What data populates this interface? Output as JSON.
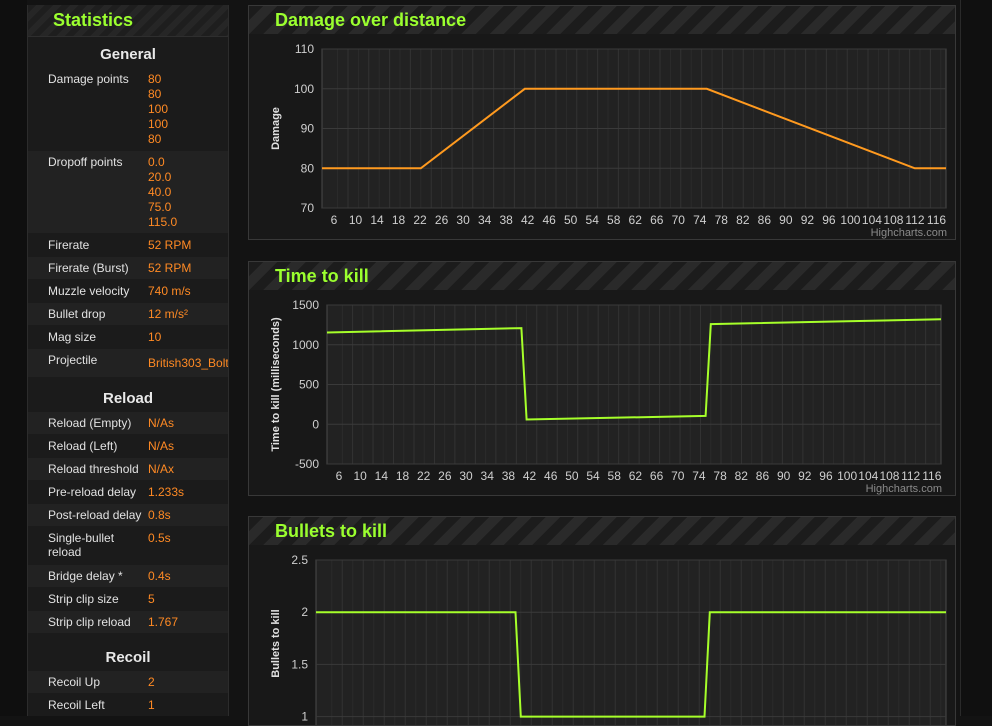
{
  "stats": {
    "title": "Statistics",
    "general_title": "General",
    "general": [
      {
        "label": "Damage points",
        "values": [
          "80",
          "80",
          "100",
          "100",
          "80"
        ]
      },
      {
        "label": "Dropoff points",
        "values": [
          "0.0",
          "20.0",
          "40.0",
          "75.0",
          "115.0"
        ]
      },
      {
        "label": "Firerate",
        "values": [
          "52 RPM"
        ]
      },
      {
        "label": "Firerate (Burst)",
        "values": [
          "52 RPM"
        ]
      },
      {
        "label": "Muzzle velocity",
        "values": [
          "740 m/s"
        ]
      },
      {
        "label": "Bullet drop",
        "values": [
          "12 m/s²"
        ]
      },
      {
        "label": "Mag size",
        "values": [
          "10"
        ]
      },
      {
        "label": "Projectile",
        "values": [
          "British303_Bolt"
        ]
      }
    ],
    "reload_title": "Reload",
    "reload": [
      {
        "label": "Reload (Empty)",
        "values": [
          "N/As"
        ]
      },
      {
        "label": "Reload (Left)",
        "values": [
          "N/As"
        ]
      },
      {
        "label": "Reload threshold",
        "values": [
          "N/Ax"
        ]
      },
      {
        "label": "Pre-reload delay",
        "values": [
          "1.233s"
        ]
      },
      {
        "label": "Post-reload delay",
        "values": [
          "0.8s"
        ]
      },
      {
        "label": "Single-bullet reload",
        "values": [
          "0.5s"
        ]
      },
      {
        "label": "Bridge delay *",
        "values": [
          "0.4s"
        ]
      },
      {
        "label": "Strip clip size",
        "values": [
          "5"
        ]
      },
      {
        "label": "Strip clip reload",
        "values": [
          "1.767"
        ]
      }
    ],
    "recoil_title": "Recoil",
    "recoil": [
      {
        "label": "Recoil Up",
        "values": [
          "2"
        ]
      },
      {
        "label": "Recoil Left",
        "values": [
          "1"
        ]
      }
    ]
  },
  "colors": {
    "accent": "#9bff2f",
    "value": "#ff8a24",
    "damage_line": "#ff9a1f",
    "kill_line": "#a6ff2a"
  },
  "chart_data": [
    {
      "type": "line",
      "title": "Damage over distance",
      "ylabel": "Damage",
      "xlabel": "",
      "credit": "Highcharts.com",
      "x_ticks": [
        "6",
        "10",
        "14",
        "18",
        "22",
        "26",
        "30",
        "34",
        "38",
        "42",
        "46",
        "50",
        "54",
        "58",
        "62",
        "66",
        "70",
        "74",
        "78",
        "82",
        "86",
        "90",
        "92",
        "96",
        "100",
        "104",
        "108",
        "112",
        "116"
      ],
      "y_ticks": [
        70,
        80,
        90,
        100,
        110
      ],
      "ylim": [
        70,
        110
      ],
      "grid": true,
      "series": [
        {
          "points": [
            [
              1,
              80
            ],
            [
              20,
              80
            ],
            [
              40,
              100
            ],
            [
              75,
              100
            ],
            [
              115,
              80
            ],
            [
              121,
              80
            ]
          ]
        }
      ]
    },
    {
      "type": "line",
      "title": "Time to kill",
      "ylabel": "Time to kill (milliseconds)",
      "xlabel": "",
      "credit": "Highcharts.com",
      "x_ticks": [
        "6",
        "10",
        "14",
        "18",
        "22",
        "26",
        "30",
        "34",
        "38",
        "42",
        "46",
        "50",
        "54",
        "58",
        "62",
        "66",
        "70",
        "74",
        "78",
        "82",
        "86",
        "90",
        "92",
        "96",
        "100",
        "104",
        "108",
        "112",
        "116"
      ],
      "y_ticks": [
        -500,
        0,
        500,
        1000,
        1500
      ],
      "ylim": [
        -500,
        1500
      ],
      "grid": true,
      "series": [
        {
          "points": [
            [
              1,
              1154
            ],
            [
              39,
              1210
            ],
            [
              40,
              60
            ],
            [
              75,
              105
            ],
            [
              76,
              1260
            ],
            [
              121,
              1320
            ]
          ]
        }
      ]
    },
    {
      "type": "line",
      "title": "Bullets to kill",
      "ylabel": "Bullets to kill",
      "xlabel": "",
      "y_ticks": [
        1,
        1.5,
        2,
        2.5
      ],
      "ylim": [
        0.9,
        2.5
      ],
      "grid": true,
      "series": [
        {
          "points": [
            [
              1,
              2
            ],
            [
              39,
              2
            ],
            [
              40,
              1
            ],
            [
              75,
              1
            ],
            [
              76,
              2
            ],
            [
              121,
              2
            ]
          ]
        }
      ]
    }
  ]
}
